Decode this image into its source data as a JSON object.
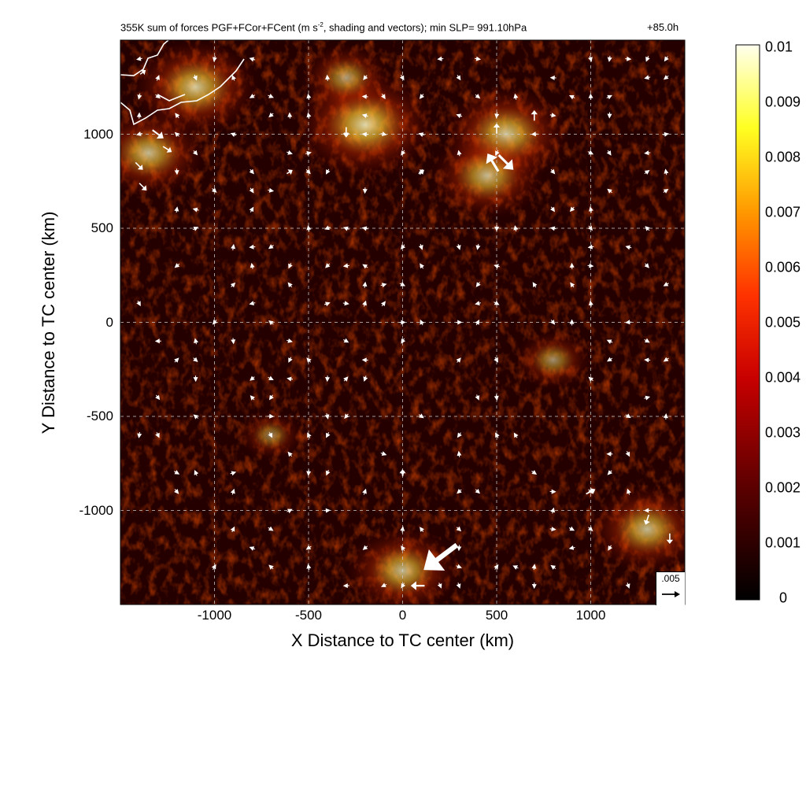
{
  "title_left": "355K sum of forces PGF+FCor+FCent (m s",
  "title_sup": "-2",
  "title_rest": ", shading and vectors); min SLP= 991.10hPa",
  "title_right": "+85.0h",
  "reference_vector": {
    "label": ".005",
    "value": 0.005
  },
  "colors": {
    "low": "#000000",
    "mid": "#cc1100",
    "high": "#ffff22",
    "max": "#ffffee",
    "grid": "#cccccc",
    "vector": "#ffffff"
  },
  "chart_data": {
    "type": "heatmap",
    "title": "355K sum of forces PGF+FCor+FCent (m s-2, shading and vectors); min SLP= 991.10hPa",
    "xlabel": "X Distance to TC center (km)",
    "ylabel": "Y Distance to TC center (km)",
    "xlim": [
      -1500,
      1500
    ],
    "ylim": [
      -1500,
      1500
    ],
    "xticks": [
      -1000,
      -500,
      0,
      500,
      1000
    ],
    "yticks": [
      -1000,
      -500,
      0,
      500,
      1000
    ],
    "xtick_labels": [
      "-1000",
      "-500",
      "0",
      "500",
      "1000"
    ],
    "ytick_labels": [
      "-1000",
      "-500",
      "0",
      "500",
      "1000"
    ],
    "grid": true,
    "colorbar": {
      "range": [
        0,
        0.01
      ],
      "ticks": [
        0,
        0.001,
        0.002,
        0.003,
        0.004,
        0.005,
        0.006,
        0.007,
        0.008,
        0.009,
        0.01
      ],
      "tick_labels": [
        "0",
        "0.001",
        "0.002",
        "0.003",
        "0.004",
        "0.005",
        "0.006",
        "0.007",
        "0.008",
        "0.009",
        "0.01"
      ],
      "placement": "right"
    },
    "hotspots": [
      {
        "x": -1100,
        "y": 1250,
        "value": 0.007
      },
      {
        "x": -1350,
        "y": 900,
        "value": 0.006
      },
      {
        "x": -200,
        "y": 1050,
        "value": 0.008
      },
      {
        "x": 550,
        "y": 1000,
        "value": 0.007
      },
      {
        "x": 450,
        "y": 780,
        "value": 0.006
      },
      {
        "x": 1300,
        "y": -1100,
        "value": 0.006
      },
      {
        "x": 0,
        "y": -1320,
        "value": 0.006
      },
      {
        "x": -300,
        "y": 1300,
        "value": 0.004
      },
      {
        "x": 800,
        "y": -200,
        "value": 0.003
      },
      {
        "x": -700,
        "y": -600,
        "value": 0.002
      }
    ],
    "vectors": [
      {
        "x": 480,
        "y": 850,
        "u": -0.6,
        "v": 1.0,
        "mag": 0.006
      },
      {
        "x": 550,
        "y": 850,
        "u": 0.7,
        "v": -0.7,
        "mag": 0.006
      },
      {
        "x": 200,
        "y": -1250,
        "u": -0.8,
        "v": -0.6,
        "mag": 0.012
      },
      {
        "x": 80,
        "y": -1400,
        "u": -1.0,
        "v": 0.0,
        "mag": 0.004
      },
      {
        "x": -1300,
        "y": 1000,
        "u": 0.8,
        "v": -0.6,
        "mag": 0.004
      },
      {
        "x": -1250,
        "y": 920,
        "u": 0.8,
        "v": -0.5,
        "mag": 0.003
      },
      {
        "x": -1400,
        "y": 830,
        "u": 0.7,
        "v": -0.7,
        "mag": 0.003
      },
      {
        "x": -1380,
        "y": 720,
        "u": 0.7,
        "v": -0.7,
        "mag": 0.003
      },
      {
        "x": -300,
        "y": 1010,
        "u": 0.0,
        "v": -1.0,
        "mag": 0.003
      },
      {
        "x": 500,
        "y": 1030,
        "u": 0.0,
        "v": 1.0,
        "mag": 0.003
      },
      {
        "x": 700,
        "y": 1100,
        "u": 0.0,
        "v": 1.0,
        "mag": 0.003
      },
      {
        "x": 1000,
        "y": -900,
        "u": 0.8,
        "v": 0.4,
        "mag": 0.003
      },
      {
        "x": 1300,
        "y": -1050,
        "u": -0.3,
        "v": -0.9,
        "mag": 0.003
      },
      {
        "x": 1420,
        "y": -1150,
        "u": 0.0,
        "v": -1.0,
        "mag": 0.003
      },
      {
        "x": -600,
        "y": 800,
        "u": 0.8,
        "v": 0.5,
        "mag": 0.002
      },
      {
        "x": 100,
        "y": 800,
        "u": 0.7,
        "v": 0.5,
        "mag": 0.002
      },
      {
        "x": 0,
        "y": -800,
        "u": 0.0,
        "v": 1.0,
        "mag": 0.002
      },
      {
        "x": -1380,
        "y": 1330,
        "u": 0.8,
        "v": 0.6,
        "mag": 0.002
      }
    ]
  }
}
